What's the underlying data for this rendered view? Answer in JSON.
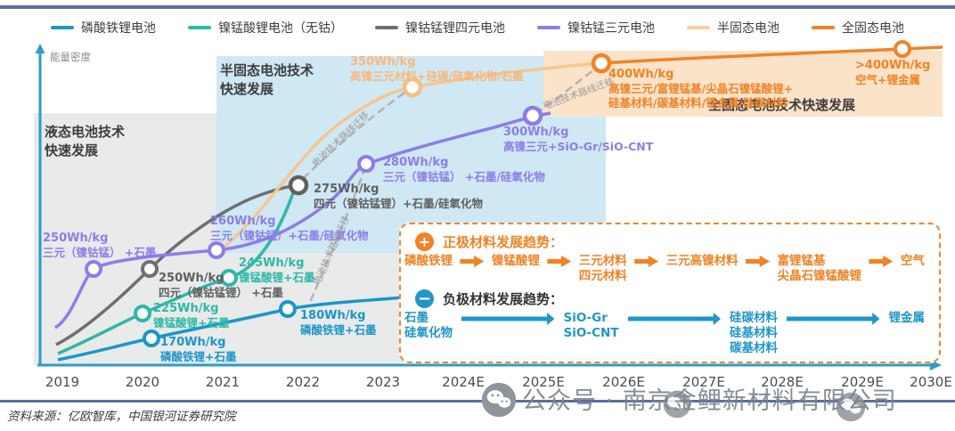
{
  "page": {
    "source": "资料来源：亿欧智库，中国银河证券研究院",
    "watermark": "公众号 · 南京金鲤新材料有限公司"
  },
  "colors": {
    "lfp": "#1b96c8",
    "lnmo": "#2eb8a8",
    "quad": "#6f6f6f",
    "ncm": "#8d7de8",
    "semi_solid": "#f6bd87",
    "solid": "#f08326",
    "region_liquid": "#e9eaea",
    "region_semi": "#cfe8f4",
    "region_solid": "#fbe3ca",
    "axis": "#2b9cca"
  },
  "legend": [
    {
      "label": "磷酸铁锂电池",
      "color": "#1b96c8"
    },
    {
      "label": "镍锰酸锂电池（无钴）",
      "color": "#2eb8a8"
    },
    {
      "label": "镍钴锰锂四元电池",
      "color": "#6f6f6f"
    },
    {
      "label": "镍钴锰三元电池",
      "color": "#8d7de8"
    },
    {
      "label": "半固态电池",
      "color": "#f9cf9e"
    },
    {
      "label": "全固态电池",
      "color": "#f08326"
    }
  ],
  "axis": {
    "y_label": "能量密度",
    "x_ticks": [
      "2019",
      "2020",
      "2021",
      "2022",
      "2023",
      "2024E",
      "2025E",
      "2026E",
      "2027E",
      "2028E",
      "2029E",
      "2030E"
    ]
  },
  "regions": {
    "liquid": [
      "液态电池技术",
      "快速发展"
    ],
    "semi": [
      "半固态电池技术",
      "快速发展"
    ],
    "solid": [
      "全固态电池技术快速发展"
    ]
  },
  "labels": {
    "migration": "电池技术路线迁移"
  },
  "points": [
    {
      "value": "250Wh/kg",
      "lines": [
        "三元（镍钴锰） +石墨"
      ],
      "color": "#8d7de8"
    },
    {
      "value": "250Wh/kg",
      "lines": [
        "四元（镍钴锰锂） +石墨"
      ],
      "color": "#5f5f5f"
    },
    {
      "value": "225Wh/kg",
      "lines": [
        "镍锰酸锂+石墨"
      ],
      "color": "#2eb8a8"
    },
    {
      "value": "170Wh/kg",
      "lines": [
        "磷酸铁锂+石墨"
      ],
      "color": "#1b96c8"
    },
    {
      "value": "245Wh/kg",
      "lines": [
        "镍锰酸锂+石墨"
      ],
      "color": "#2eb8a8"
    },
    {
      "value": "260Wh/kg",
      "lines": [
        "三元（镍钴锰）+石墨/硅氧化物"
      ],
      "color": "#8d7de8"
    },
    {
      "value": "180Wh/kg",
      "lines": [
        "磷酸铁锂+石墨"
      ],
      "color": "#1b96c8"
    },
    {
      "value": "275Wh/kg",
      "lines": [
        "四元（镍钴锰锂）+石墨/硅氧化物"
      ],
      "color": "#5f5f5f"
    },
    {
      "value": "280Wh/kg",
      "lines": [
        "三元（镍钴锰） +石墨/硅氧化物"
      ],
      "color": "#8d7de8"
    },
    {
      "value": "350Wh/kg",
      "lines": [
        "高镍三元材料+硅碳/硅氧化物/石墨"
      ],
      "color": "#f6b87e"
    },
    {
      "value": "300Wh/kg",
      "lines": [
        "高镍三元+SiO-Gr/SiO-CNT"
      ],
      "color": "#8d7de8"
    },
    {
      "value": "400Wh/kg",
      "lines": [
        "高镍三元/富锂锰基/尖晶石镍锰酸锂+",
        "硅基材料/碳基材料/锂金属/硅碳材料"
      ],
      "color": "#f08326"
    },
    {
      "value": ">400Wh/kg",
      "lines": [
        "空气+锂金属"
      ],
      "color": "#f08326"
    }
  ],
  "trend_box": {
    "cathode": {
      "title": "正极材料发展趋势：",
      "steps": [
        [
          "磷酸铁锂"
        ],
        [
          "镍锰酸锂"
        ],
        [
          "三元材料",
          "四元材料"
        ],
        [
          "三元高镍材料"
        ],
        [
          "富锂锰基",
          "尖晶石镍锰酸锂"
        ],
        [
          "空气"
        ]
      ]
    },
    "anode": {
      "title": "负极材料发展趋势：",
      "steps": [
        [
          "石墨",
          "硅氧化物"
        ],
        [
          "SiO-Gr",
          "SiO-CNT"
        ],
        [
          "硅碳材料",
          "硅基材料",
          "碳基材料"
        ],
        [
          "锂金属"
        ]
      ]
    }
  },
  "chart_data": {
    "type": "line",
    "title": "",
    "ylabel": "能量密度",
    "unit": "Wh/kg",
    "x_categories": [
      "2019",
      "2020",
      "2021",
      "2022",
      "2023",
      "2024E",
      "2025E",
      "2026E",
      "2027E",
      "2028E",
      "2029E",
      "2030E"
    ],
    "legend_position": "top",
    "grid": false,
    "series": [
      {
        "name": "磷酸铁锂电池",
        "color": "#1b96c8",
        "points": [
          {
            "x": "2020",
            "y": 170,
            "label": "170Wh/kg 磷酸铁锂+石墨"
          },
          {
            "x": "2022",
            "y": 180,
            "label": "180Wh/kg 磷酸铁锂+石墨"
          }
        ]
      },
      {
        "name": "镍锰酸锂电池（无钴）",
        "color": "#2eb8a8",
        "points": [
          {
            "x": "2020",
            "y": 225,
            "label": "225Wh/kg 镍锰酸锂+石墨"
          },
          {
            "x": "2021",
            "y": 245,
            "label": "245Wh/kg 镍锰酸锂+石墨"
          }
        ]
      },
      {
        "name": "镍钴锰锂四元电池",
        "color": "#6f6f6f",
        "points": [
          {
            "x": "2020",
            "y": 250,
            "label": "250Wh/kg 四元（镍钴锰锂）+石墨"
          },
          {
            "x": "2022",
            "y": 275,
            "label": "275Wh/kg 四元（镍钴锰锂）+石墨/硅氧化物"
          }
        ]
      },
      {
        "name": "镍钴锰三元电池",
        "color": "#8d7de8",
        "points": [
          {
            "x": "2020",
            "y": 250,
            "label": "250Wh/kg 三元（镍钴锰）+石墨"
          },
          {
            "x": "2021",
            "y": 260,
            "label": "260Wh/kg 三元（镍钴锰）+石墨/硅氧化物"
          },
          {
            "x": "2023",
            "y": 280,
            "label": "280Wh/kg 三元（镍钴锰）+石墨/硅氧化物"
          },
          {
            "x": "2025E",
            "y": 300,
            "label": "300Wh/kg 高镍三元+SiO-Gr/SiO-CNT"
          }
        ]
      },
      {
        "name": "半固态电池",
        "color": "#f6bd87",
        "points": [
          {
            "x": "2024E",
            "y": 350,
            "label": "350Wh/kg 高镍三元材料+硅碳/硅氧化物/石墨"
          }
        ]
      },
      {
        "name": "全固态电池",
        "color": "#f08326",
        "points": [
          {
            "x": "2026E",
            "y": 400,
            "label": "400Wh/kg 高镍三元/富锂锰基/尖晶石镍锰酸锂+硅基材料/碳基材料/锂金属/硅碳材料"
          },
          {
            "x": "2030E",
            "y": 400,
            "y_text": ">400",
            "label": ">400Wh/kg 空气+锂金属"
          }
        ]
      }
    ],
    "annotations": [
      "液态电池技术快速发展",
      "半固态电池技术快速发展",
      "全固态电池技术快速发展",
      "电池技术路线迁移(×3)"
    ]
  }
}
